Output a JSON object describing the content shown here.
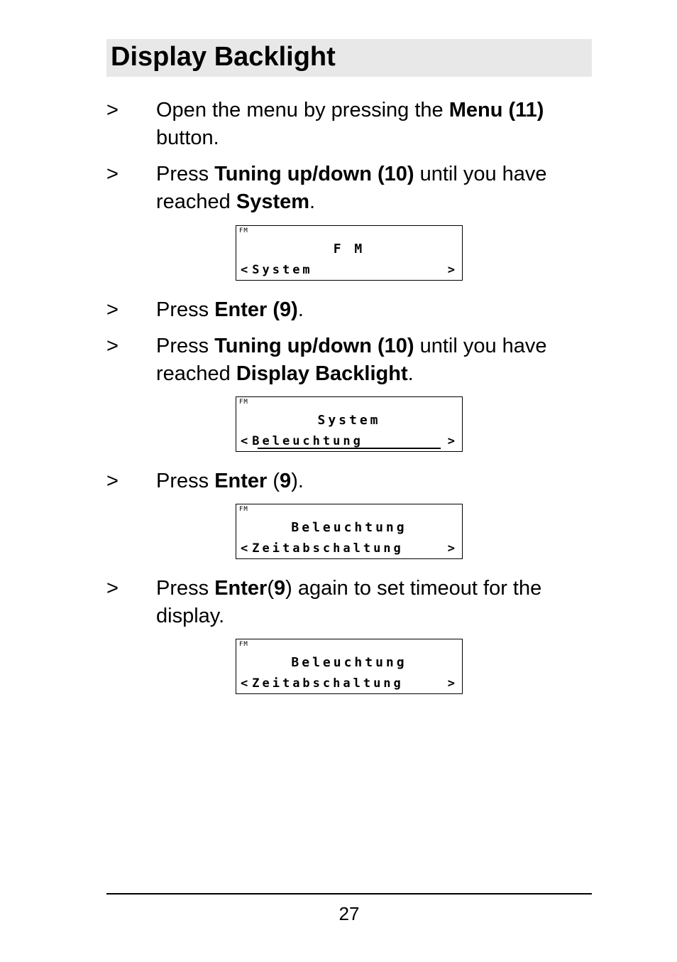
{
  "colors": {
    "heading_bg": "#e8e8e8",
    "text": "#000000",
    "page_bg": "#ffffff",
    "border": "#000000"
  },
  "heading": "Display Backlight",
  "steps": [
    {
      "marker": ">",
      "segments": [
        {
          "t": "Open the menu by pressing the ",
          "b": false
        },
        {
          "t": "Menu (11)",
          "b": true
        },
        {
          "t": " button.",
          "b": false
        }
      ]
    },
    {
      "marker": ">",
      "segments": [
        {
          "t": "Press ",
          "b": false
        },
        {
          "t": "Tuning up/down (10)",
          "b": true
        },
        {
          "t": " until you have reached ",
          "b": false
        },
        {
          "t": "System",
          "b": true
        },
        {
          "t": ".",
          "b": false
        }
      ],
      "lcd": {
        "tag": "FM",
        "line1": "F M",
        "line2": "System",
        "arrows": true,
        "underline": false
      }
    },
    {
      "marker": ">",
      "segments": [
        {
          "t": "Press ",
          "b": false
        },
        {
          "t": "Enter (9)",
          "b": true
        },
        {
          "t": ".",
          "b": false
        }
      ]
    },
    {
      "marker": ">",
      "segments": [
        {
          "t": "Press ",
          "b": false
        },
        {
          "t": "Tuning up/down (10)",
          "b": true
        },
        {
          "t": " until you have reached ",
          "b": false
        },
        {
          "t": "Display Backlight",
          "b": true
        },
        {
          "t": ".",
          "b": false
        }
      ],
      "lcd": {
        "tag": "FM",
        "line1": "System",
        "line2": "Beleuchtung",
        "arrows": true,
        "underline": true
      }
    },
    {
      "marker": ">",
      "segments": [
        {
          "t": "Press ",
          "b": false
        },
        {
          "t": "Enter",
          "b": true
        },
        {
          "t": " (",
          "b": false
        },
        {
          "t": "9",
          "b": true
        },
        {
          "t": ").",
          "b": false
        }
      ],
      "lcd": {
        "tag": "FM",
        "line1": "Beleuchtung",
        "line2": "Zeitabschaltung",
        "arrows": true,
        "underline": false
      }
    },
    {
      "marker": ">",
      "segments": [
        {
          "t": "Press ",
          "b": false
        },
        {
          "t": "Enter",
          "b": true
        },
        {
          "t": "(",
          "b": false
        },
        {
          "t": "9",
          "b": true
        },
        {
          "t": ") again to set timeout for the display.",
          "b": false
        }
      ],
      "lcd": {
        "tag": "FM",
        "line1": "Beleuchtung",
        "line2": "Zeitabschaltung",
        "arrows": true,
        "underline": false
      }
    }
  ],
  "page_number": "27"
}
